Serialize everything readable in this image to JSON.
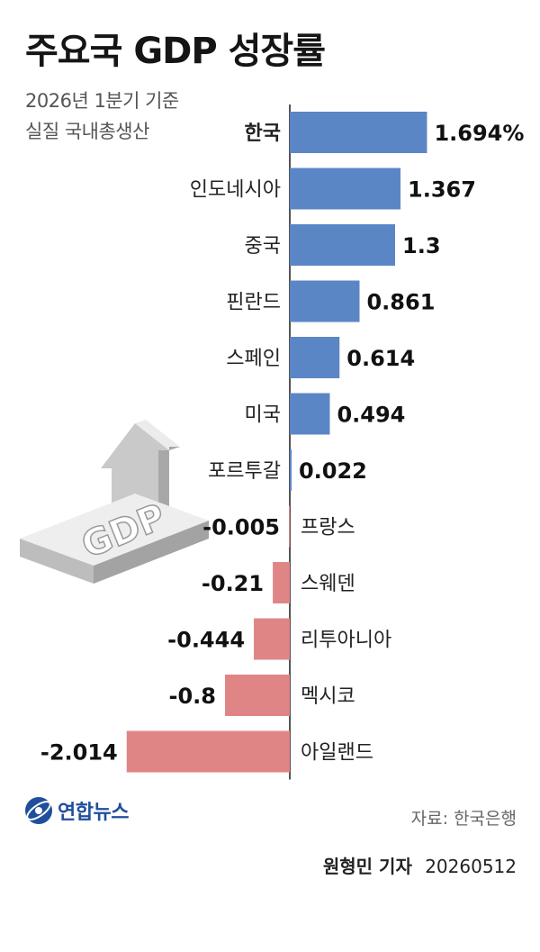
{
  "title": "주요국 GDP 성장률",
  "subtitle": [
    "2026년 1분기 기준",
    "실질 국내총생산"
  ],
  "source": "자료: 한국은행",
  "credit": {
    "reporter": "원형민 기자",
    "date": "20260512"
  },
  "logo_text": "연합뉴스",
  "illustration": {
    "label": "GDP",
    "icon": "gdp-up-arrow-illustration"
  },
  "colors": {
    "positive": "#5b86c6",
    "negative": "#e08585",
    "axis": "#1b1b1b"
  },
  "chart_data": {
    "type": "bar",
    "orientation": "horizontal",
    "unit": "%",
    "categories": [
      "한국",
      "인도네시아",
      "중국",
      "핀란드",
      "스페인",
      "미국",
      "포르투갈",
      "프랑스",
      "스웨덴",
      "리투아니아",
      "멕시코",
      "아일랜드"
    ],
    "values": [
      1.694,
      1.367,
      1.3,
      0.861,
      0.614,
      0.494,
      0.022,
      -0.005,
      -0.21,
      -0.444,
      -0.8,
      -2.014
    ],
    "value_labels": [
      "1.694%",
      "1.367",
      "1.3",
      "0.861",
      "0.614",
      "0.494",
      "0.022",
      "-0.005",
      "-0.21",
      "-0.444",
      "-0.8",
      "-2.014"
    ],
    "highlight": "한국",
    "xlabel": "",
    "ylabel": ""
  }
}
